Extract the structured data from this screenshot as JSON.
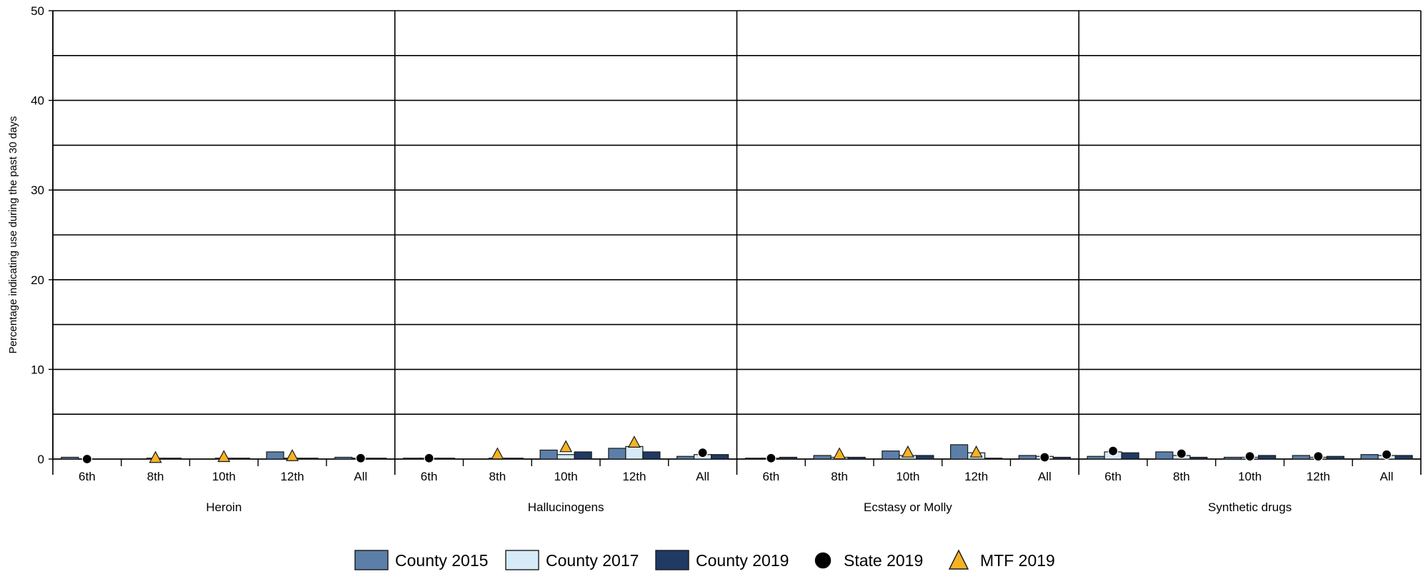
{
  "chart_data": {
    "type": "bar",
    "ylabel": "Percentage indicating use during the past 30 days",
    "ylim": [
      0,
      50
    ],
    "y_ticks": [
      "0",
      "10",
      "20",
      "30",
      "40",
      "50"
    ],
    "grid": true,
    "legend_position": "bottom",
    "colors": {
      "County 2015": "#5b7fa8",
      "County 2017": "#d6eaf8",
      "County 2019": "#1f3a63",
      "State 2019": "#000000",
      "MTF 2019": "#f5b324"
    },
    "legend": [
      "County 2015",
      "County 2017",
      "County 2019",
      "State 2019",
      "MTF 2019"
    ],
    "groups": [
      {
        "name": "Heroin",
        "categories": [
          "6th",
          "8th",
          "10th",
          "12th",
          "All"
        ],
        "county_2015": [
          0.2,
          0.0,
          0.0,
          0.8,
          0.2
        ],
        "county_2017": [
          0.0,
          0.1,
          0.1,
          0.1,
          0.1
        ],
        "county_2019": [
          0.0,
          0.1,
          0.1,
          0.1,
          0.1
        ],
        "state_2019": [
          0.0,
          null,
          null,
          null,
          0.1
        ],
        "mtf_2019": [
          null,
          0.1,
          0.2,
          0.3,
          null
        ]
      },
      {
        "name": "Hallucinogens",
        "categories": [
          "6th",
          "8th",
          "10th",
          "12th",
          "All"
        ],
        "county_2015": [
          0.1,
          0.0,
          1.0,
          1.2,
          0.3
        ],
        "county_2017": [
          0.1,
          0.1,
          0.5,
          1.4,
          0.5
        ],
        "county_2019": [
          0.1,
          0.1,
          0.8,
          0.8,
          0.5
        ],
        "state_2019": [
          0.1,
          null,
          null,
          null,
          0.7
        ],
        "mtf_2019": [
          null,
          0.5,
          1.3,
          1.8,
          null
        ]
      },
      {
        "name": "Ecstasy or Molly",
        "categories": [
          "6th",
          "8th",
          "10th",
          "12th",
          "All"
        ],
        "county_2015": [
          0.1,
          0.4,
          0.9,
          1.6,
          0.4
        ],
        "county_2017": [
          0.1,
          0.2,
          0.4,
          0.7,
          0.3
        ],
        "county_2019": [
          0.2,
          0.2,
          0.4,
          0.1,
          0.2
        ],
        "state_2019": [
          0.1,
          null,
          null,
          null,
          0.2
        ],
        "mtf_2019": [
          null,
          0.5,
          0.7,
          0.7,
          null
        ]
      },
      {
        "name": "Synthetic drugs",
        "categories": [
          "6th",
          "8th",
          "10th",
          "12th",
          "All"
        ],
        "county_2015": [
          0.3,
          0.8,
          0.2,
          0.4,
          0.5
        ],
        "county_2017": [
          0.8,
          0.4,
          0.2,
          0.2,
          0.4
        ],
        "county_2019": [
          0.7,
          0.2,
          0.4,
          0.3,
          0.4
        ],
        "state_2019": [
          0.9,
          0.6,
          0.3,
          0.3,
          0.5
        ],
        "mtf_2019": [
          null,
          null,
          null,
          null,
          null
        ]
      }
    ]
  }
}
